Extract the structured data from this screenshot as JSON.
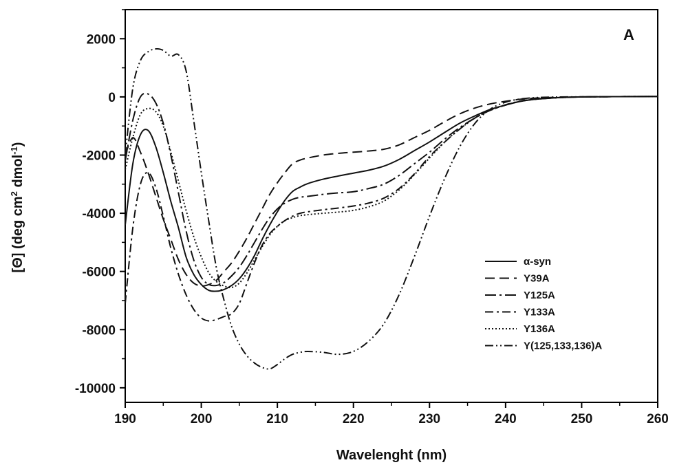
{
  "chart_data": {
    "type": "line",
    "panel_label": "A",
    "xlabel": "Wavelenght (nm)",
    "ylabel": {
      "parts": [
        "[Θ] (deg cm",
        "2",
        " dmol",
        "-1",
        ")"
      ]
    },
    "xlim": [
      190,
      260
    ],
    "ylim": [
      -10500,
      3000
    ],
    "xticks": [
      190,
      200,
      210,
      220,
      230,
      240,
      250,
      260
    ],
    "yticks": [
      -10000,
      -8000,
      -6000,
      -4000,
      -2000,
      0,
      2000
    ],
    "legend_position": "bottom-right",
    "series": [
      {
        "name": "α-syn",
        "dash": "",
        "x": [
          190,
          191,
          192,
          193,
          194,
          195,
          196,
          197,
          198,
          199,
          200,
          201,
          202,
          203,
          204,
          205,
          206,
          207,
          208,
          209,
          210,
          211,
          212,
          213,
          214,
          216,
          218,
          220,
          222,
          224,
          226,
          228,
          230,
          232,
          234,
          236,
          238,
          240,
          242,
          244,
          246,
          248,
          250,
          255,
          260
        ],
        "y": [
          -4400,
          -2300,
          -1300,
          -1150,
          -1700,
          -2600,
          -3600,
          -4500,
          -5500,
          -6100,
          -6450,
          -6650,
          -6680,
          -6620,
          -6480,
          -6250,
          -5900,
          -5450,
          -4900,
          -4400,
          -3950,
          -3550,
          -3250,
          -3100,
          -2980,
          -2830,
          -2720,
          -2620,
          -2520,
          -2380,
          -2150,
          -1850,
          -1550,
          -1220,
          -900,
          -650,
          -430,
          -280,
          -150,
          -80,
          -40,
          -15,
          0,
          10,
          15
        ]
      },
      {
        "name": "Y39A",
        "dash": "14,7",
        "x": [
          190,
          191,
          192,
          193,
          194,
          195,
          196,
          197,
          198,
          199,
          200,
          201,
          202,
          203,
          204,
          205,
          206,
          207,
          208,
          209,
          210,
          211,
          212,
          213,
          214,
          216,
          218,
          220,
          222,
          224,
          226,
          228,
          230,
          232,
          234,
          236,
          238,
          240,
          242,
          244,
          246,
          248,
          250,
          255,
          260
        ],
        "y": [
          -2000,
          -1400,
          -1900,
          -2600,
          -3400,
          -4200,
          -4900,
          -5600,
          -6100,
          -6400,
          -6500,
          -6450,
          -6300,
          -6000,
          -5700,
          -5300,
          -4850,
          -4350,
          -3850,
          -3350,
          -2950,
          -2600,
          -2300,
          -2170,
          -2100,
          -2000,
          -1940,
          -1900,
          -1860,
          -1800,
          -1650,
          -1400,
          -1150,
          -850,
          -580,
          -380,
          -240,
          -150,
          -80,
          -40,
          -20,
          -10,
          0,
          10,
          15
        ]
      },
      {
        "name": "Y125A",
        "dash": "16,5,3,5",
        "x": [
          190,
          191,
          192,
          193,
          194,
          195,
          196,
          197,
          198,
          199,
          200,
          201,
          202,
          203,
          204,
          205,
          206,
          207,
          208,
          209,
          210,
          211,
          212,
          213,
          214,
          216,
          218,
          220,
          222,
          224,
          226,
          228,
          230,
          232,
          234,
          236,
          238,
          240,
          242,
          244,
          246,
          248,
          250,
          255,
          260
        ],
        "y": [
          -2200,
          -800,
          0,
          100,
          -200,
          -900,
          -2000,
          -3300,
          -4600,
          -5600,
          -6200,
          -6450,
          -6480,
          -6380,
          -6150,
          -5850,
          -5450,
          -5000,
          -4550,
          -4150,
          -3850,
          -3650,
          -3520,
          -3450,
          -3420,
          -3350,
          -3300,
          -3260,
          -3150,
          -3000,
          -2700,
          -2300,
          -1900,
          -1450,
          -1050,
          -720,
          -460,
          -280,
          -150,
          -80,
          -40,
          -15,
          0,
          10,
          15
        ]
      },
      {
        "name": "Y133A",
        "dash": "12,5,3,5",
        "x": [
          190,
          191,
          192,
          193,
          194,
          195,
          196,
          197,
          198,
          199,
          200,
          201,
          202,
          203,
          204,
          205,
          206,
          207,
          208,
          209,
          210,
          211,
          212,
          213,
          214,
          216,
          218,
          220,
          222,
          224,
          226,
          228,
          230,
          232,
          234,
          236,
          238,
          240,
          242,
          244,
          246,
          248,
          250,
          255,
          260
        ],
        "y": [
          -7100,
          -4500,
          -3000,
          -2600,
          -3100,
          -4100,
          -5200,
          -6100,
          -6800,
          -7300,
          -7600,
          -7700,
          -7650,
          -7550,
          -7450,
          -7100,
          -6400,
          -5700,
          -5100,
          -4700,
          -4450,
          -4250,
          -4100,
          -4000,
          -3950,
          -3880,
          -3820,
          -3750,
          -3650,
          -3480,
          -3150,
          -2650,
          -2050,
          -1550,
          -1100,
          -720,
          -450,
          -270,
          -140,
          -70,
          -35,
          -15,
          0,
          10,
          15
        ]
      },
      {
        "name": "Y136A",
        "dash": "2,3",
        "x": [
          190,
          191,
          192,
          193,
          194,
          195,
          196,
          197,
          198,
          199,
          200,
          201,
          202,
          203,
          204,
          205,
          206,
          207,
          208,
          209,
          210,
          211,
          212,
          213,
          214,
          216,
          218,
          220,
          222,
          224,
          226,
          228,
          230,
          232,
          234,
          236,
          238,
          240,
          242,
          244,
          246,
          248,
          250,
          255,
          260
        ],
        "y": [
          -2500,
          -1400,
          -600,
          -400,
          -500,
          -1000,
          -1900,
          -2900,
          -3900,
          -4800,
          -5500,
          -6050,
          -6350,
          -6500,
          -6550,
          -6400,
          -6050,
          -5600,
          -5150,
          -4750,
          -4450,
          -4250,
          -4150,
          -4080,
          -4050,
          -4000,
          -3960,
          -3900,
          -3780,
          -3580,
          -3200,
          -2680,
          -2100,
          -1550,
          -1100,
          -720,
          -460,
          -280,
          -150,
          -80,
          -40,
          -15,
          0,
          10,
          15
        ]
      },
      {
        "name": "Y(125,133,136)A",
        "dash": "12,4,2,4,2,4",
        "x": [
          190,
          191,
          192,
          193,
          194,
          195,
          196,
          197,
          198,
          199,
          200,
          201,
          202,
          203,
          204,
          205,
          206,
          207,
          208,
          209,
          210,
          211,
          212,
          213,
          214,
          216,
          218,
          220,
          222,
          224,
          226,
          228,
          230,
          232,
          234,
          236,
          238,
          240,
          242,
          244,
          246,
          248,
          250,
          255,
          260
        ],
        "y": [
          -2000,
          300,
          1250,
          1550,
          1650,
          1600,
          1400,
          1450,
          900,
          -800,
          -2600,
          -4300,
          -5900,
          -7000,
          -7900,
          -8500,
          -8900,
          -9150,
          -9300,
          -9350,
          -9200,
          -9000,
          -8850,
          -8780,
          -8750,
          -8780,
          -8850,
          -8750,
          -8400,
          -7800,
          -6800,
          -5500,
          -4100,
          -2800,
          -1700,
          -900,
          -420,
          -180,
          -70,
          -25,
          -8,
          0,
          0,
          10,
          15
        ]
      }
    ]
  }
}
